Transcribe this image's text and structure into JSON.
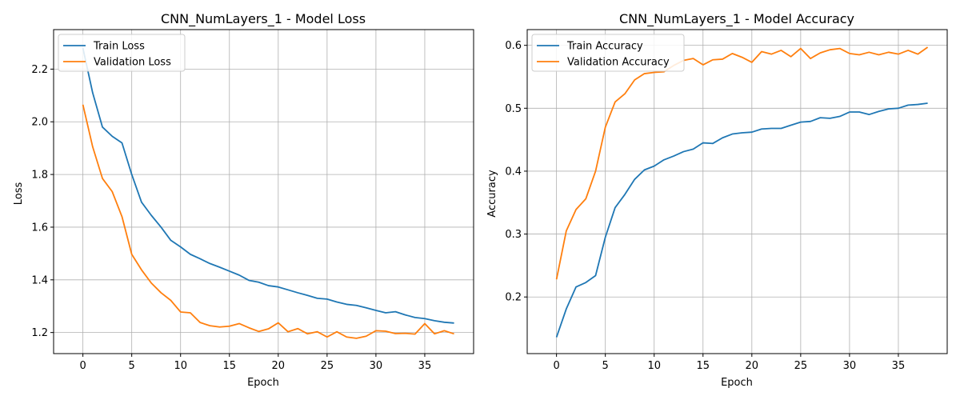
{
  "chart_data": [
    {
      "type": "line",
      "title": "CNN_NumLayers_1 - Model Loss",
      "xlabel": "Epoch",
      "ylabel": "Loss",
      "xlim": [
        -3,
        40
      ],
      "ylim": [
        1.12,
        2.35
      ],
      "xticks": [
        0,
        5,
        10,
        15,
        20,
        25,
        30,
        35
      ],
      "yticks": [
        1.2,
        1.4,
        1.6,
        1.8,
        2.0,
        2.2
      ],
      "ytick_format": 1,
      "grid": true,
      "legend_position": "top-left",
      "x": [
        0,
        1,
        2,
        3,
        4,
        5,
        6,
        7,
        8,
        9,
        10,
        11,
        12,
        13,
        14,
        15,
        16,
        17,
        18,
        19,
        20,
        21,
        22,
        23,
        24,
        25,
        26,
        27,
        28,
        29,
        30,
        31,
        32,
        33,
        34,
        35,
        36,
        37,
        38
      ],
      "series": [
        {
          "name": "Train Loss",
          "color": "#1f77b4",
          "values": [
            2.28,
            2.11,
            1.98,
            1.945,
            1.92,
            1.8,
            1.695,
            1.645,
            1.6,
            1.55,
            1.525,
            1.497,
            1.48,
            1.462,
            1.448,
            1.433,
            1.418,
            1.398,
            1.391,
            1.378,
            1.373,
            1.362,
            1.351,
            1.341,
            1.33,
            1.327,
            1.316,
            1.307,
            1.303,
            1.294,
            1.284,
            1.275,
            1.279,
            1.267,
            1.257,
            1.253,
            1.245,
            1.239,
            1.236
          ]
        },
        {
          "name": "Validation Loss",
          "color": "#ff7f0e",
          "values": [
            2.065,
            1.905,
            1.785,
            1.735,
            1.64,
            1.497,
            1.438,
            1.388,
            1.351,
            1.322,
            1.278,
            1.275,
            1.238,
            1.226,
            1.221,
            1.224,
            1.234,
            1.218,
            1.204,
            1.214,
            1.237,
            1.203,
            1.215,
            1.195,
            1.203,
            1.183,
            1.203,
            1.183,
            1.178,
            1.186,
            1.207,
            1.205,
            1.196,
            1.197,
            1.194,
            1.234,
            1.195,
            1.207,
            1.195
          ]
        }
      ]
    },
    {
      "type": "line",
      "title": "CNN_NumLayers_1 - Model Accuracy",
      "xlabel": "Epoch",
      "ylabel": "Accuracy",
      "xlim": [
        -3,
        40
      ],
      "ylim": [
        0.11,
        0.625
      ],
      "xticks": [
        0,
        5,
        10,
        15,
        20,
        25,
        30,
        35
      ],
      "yticks": [
        0.2,
        0.3,
        0.4,
        0.5,
        0.6
      ],
      "ytick_format": 1,
      "grid": true,
      "legend_position": "top-left",
      "x": [
        0,
        1,
        2,
        3,
        4,
        5,
        6,
        7,
        8,
        9,
        10,
        11,
        12,
        13,
        14,
        15,
        16,
        17,
        18,
        19,
        20,
        21,
        22,
        23,
        24,
        25,
        26,
        27,
        28,
        29,
        30,
        31,
        32,
        33,
        34,
        35,
        36,
        37,
        38
      ],
      "series": [
        {
          "name": "Train Accuracy",
          "color": "#1f77b4",
          "values": [
            0.136,
            0.181,
            0.216,
            0.223,
            0.234,
            0.295,
            0.342,
            0.363,
            0.387,
            0.402,
            0.408,
            0.418,
            0.424,
            0.431,
            0.435,
            0.445,
            0.444,
            0.453,
            0.459,
            0.461,
            0.462,
            0.467,
            0.468,
            0.468,
            0.473,
            0.478,
            0.479,
            0.485,
            0.484,
            0.487,
            0.494,
            0.494,
            0.49,
            0.495,
            0.499,
            0.5,
            0.505,
            0.506,
            0.508
          ]
        },
        {
          "name": "Validation Accuracy",
          "color": "#ff7f0e",
          "values": [
            0.228,
            0.305,
            0.339,
            0.356,
            0.4,
            0.47,
            0.51,
            0.523,
            0.545,
            0.555,
            0.557,
            0.558,
            0.568,
            0.576,
            0.579,
            0.569,
            0.577,
            0.578,
            0.587,
            0.581,
            0.573,
            0.59,
            0.586,
            0.592,
            0.582,
            0.595,
            0.579,
            0.588,
            0.593,
            0.595,
            0.587,
            0.585,
            0.589,
            0.585,
            0.589,
            0.586,
            0.592,
            0.586,
            0.597
          ]
        }
      ]
    }
  ]
}
